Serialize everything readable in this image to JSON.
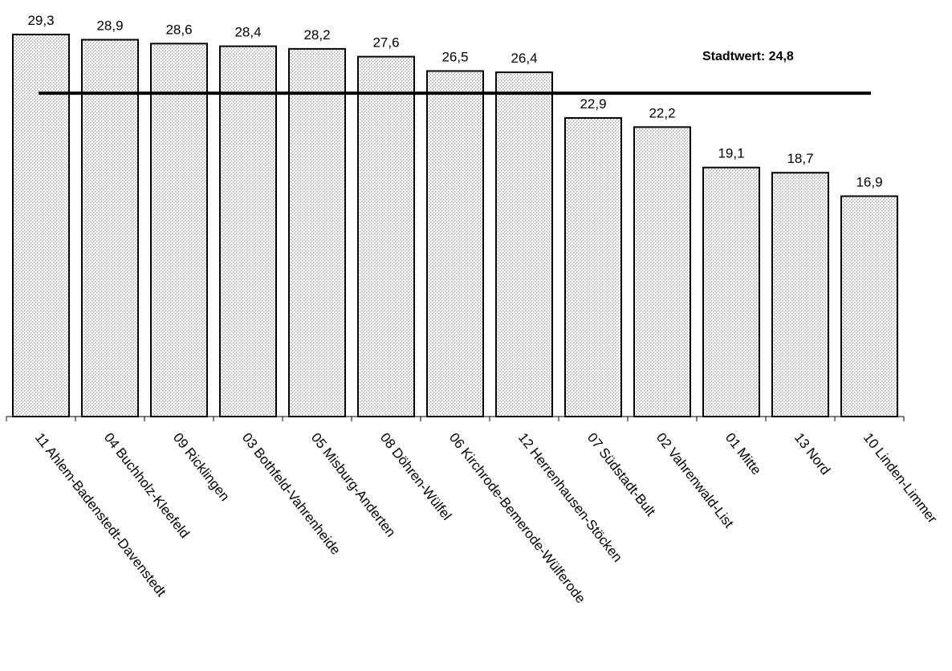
{
  "chart_data": {
    "type": "bar",
    "categories": [
      "11 Ahlem-Badenstedt-Davenstedt",
      "04 Buchholz-Kleefeld",
      "09 Ricklingen",
      "03 Bothfeld-Vahrenheide",
      "05 Misburg-Anderten",
      "08 Döhren-Wülfel",
      "06 Kirchrode-Bemerode-Wülferode",
      "12 Herrenhausen-Stöcken",
      "07 Südstadt-Bult",
      "02 Vahrenwald-List",
      "01 Mitte",
      "13 Nord",
      "10 Linden-Limmer"
    ],
    "values": [
      29.3,
      28.9,
      28.6,
      28.4,
      28.2,
      27.6,
      26.5,
      26.4,
      22.9,
      22.2,
      19.1,
      18.7,
      16.9
    ],
    "value_labels": [
      "29,3",
      "28,9",
      "28,6",
      "28,4",
      "28,2",
      "27,6",
      "26,5",
      "26,4",
      "22,9",
      "22,2",
      "19,1",
      "18,7",
      "16,9"
    ],
    "reference_line": {
      "value": 24.8,
      "label": "Stadtwert: 24,8"
    },
    "ylim": [
      0,
      29.3
    ],
    "grid": false,
    "legend": "none",
    "bar_fill": "#e6e6e6",
    "bar_stroke": "#000000"
  }
}
